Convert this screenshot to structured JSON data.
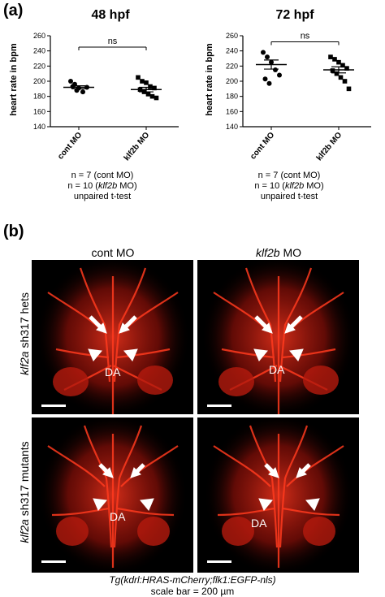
{
  "panel_a_label": "(a)",
  "panel_b_label": "(b)",
  "chart_data": [
    {
      "type": "scatter",
      "title": "48 hpf",
      "ylabel": "heart rate in bpm",
      "categories": [
        "cont MO",
        "klf2b MO"
      ],
      "ylim": [
        140,
        260
      ],
      "yticks": [
        140,
        160,
        180,
        200,
        220,
        240,
        260
      ],
      "series": [
        {
          "values": [
            200,
            196,
            191,
            186,
            192,
            193,
            188
          ],
          "mean": 192,
          "sem": 2
        },
        {
          "values": [
            205,
            200,
            198,
            193,
            191,
            189,
            186,
            183,
            180,
            178
          ],
          "mean": 189,
          "sem": 3
        }
      ],
      "significance": "ns"
    },
    {
      "type": "scatter",
      "title": "72 hpf",
      "ylabel": "heart rate in bpm",
      "categories": [
        "cont MO",
        "klf2b MO"
      ],
      "ylim": [
        140,
        260
      ],
      "yticks": [
        140,
        160,
        180,
        200,
        220,
        240,
        260
      ],
      "series": [
        {
          "values": [
            238,
            232,
            225,
            215,
            208,
            203,
            197
          ],
          "mean": 222,
          "sem": 6
        },
        {
          "values": [
            232,
            229,
            225,
            221,
            217,
            214,
            210,
            205,
            200,
            190
          ],
          "mean": 215,
          "sem": 4
        }
      ],
      "significance": "ns"
    }
  ],
  "notes": {
    "line1": "n = 7 (cont MO)",
    "line2_pre": "n = 10 (",
    "line2_it": "klf2b",
    "line2_post": " MO)",
    "line3": "unpaired t-test"
  },
  "panel_b": {
    "col1": "cont MO",
    "col2_it": "klf2b",
    "col2_post": " MO",
    "row1_it": "klf2a",
    "row1_post": " sh317 hets",
    "row2_it": "klf2a",
    "row2_post": " sh317 mutants",
    "da_label": "DA",
    "caption_it": "Tg(kdrl:HRAS-mCherry;flk1:EGFP-nls)",
    "scale": "scale bar = 200 µm"
  }
}
